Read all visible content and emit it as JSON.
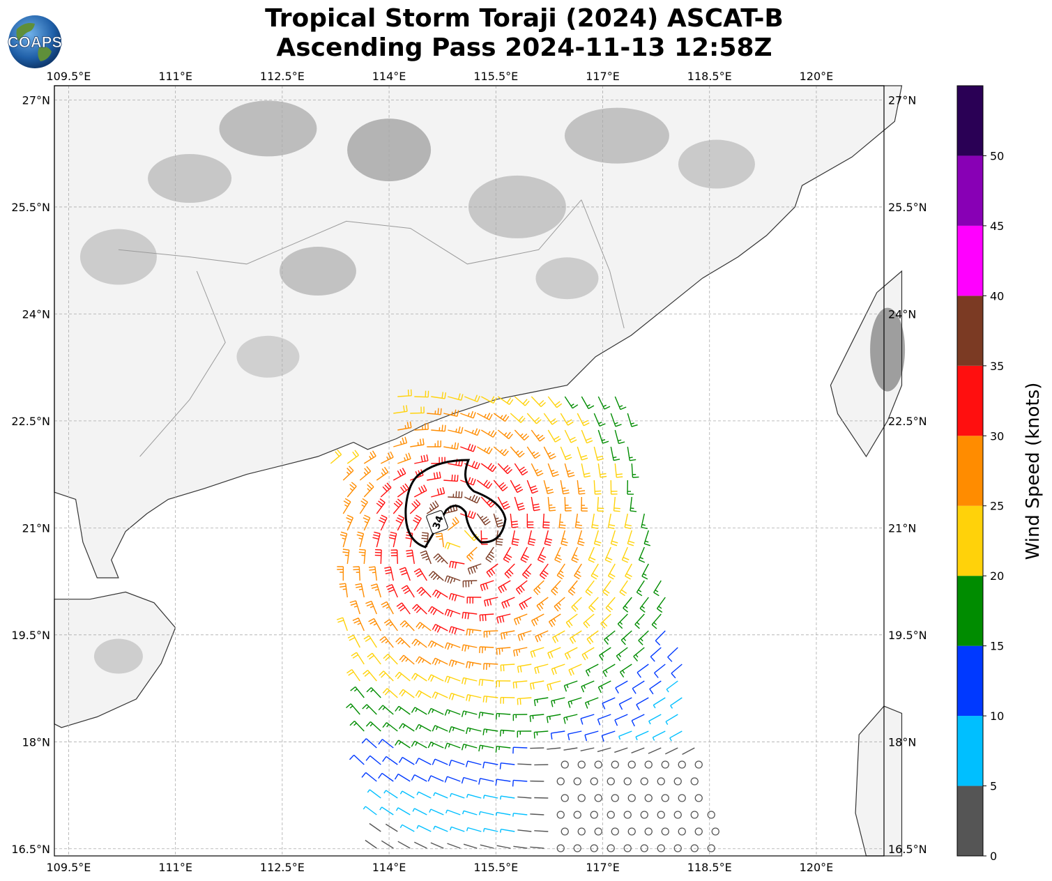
{
  "header": {
    "title_line1": "Tropical Storm Toraji (2024) ASCAT-B",
    "title_line2": "Ascending Pass 2024-11-13 12:58Z",
    "logo_text": "COAPS"
  },
  "map": {
    "lon_ticks": [
      "109.5°E",
      "111°E",
      "112.5°E",
      "114°E",
      "115.5°E",
      "117°E",
      "118.5°E",
      "120°E"
    ],
    "lat_ticks": [
      "27°N",
      "25.5°N",
      "24°N",
      "22.5°N",
      "21°N",
      "19.5°N",
      "18°N",
      "16.5°N"
    ],
    "extent": {
      "lon_min": 109.3,
      "lon_max": 120.95,
      "lat_min": 16.4,
      "lat_max": 27.2
    },
    "contour_label": "34",
    "storm_center": {
      "lon": 115.0,
      "lat": 20.85
    },
    "land_color": "#f3f3f3",
    "coast_color": "#333333"
  },
  "colorbar": {
    "label": "Wind Speed (knots)",
    "ticks": [
      "0",
      "5",
      "10",
      "15",
      "20",
      "25",
      "30",
      "35",
      "40",
      "45",
      "50"
    ],
    "bins": [
      {
        "min": 0,
        "max": 5,
        "color": "#555555"
      },
      {
        "min": 5,
        "max": 10,
        "color": "#00bfff"
      },
      {
        "min": 10,
        "max": 15,
        "color": "#0039ff"
      },
      {
        "min": 15,
        "max": 20,
        "color": "#008c00"
      },
      {
        "min": 20,
        "max": 25,
        "color": "#ffd20a"
      },
      {
        "min": 25,
        "max": 30,
        "color": "#ff8c00"
      },
      {
        "min": 30,
        "max": 35,
        "color": "#ff0f0f"
      },
      {
        "min": 35,
        "max": 40,
        "color": "#7b3a23"
      },
      {
        "min": 40,
        "max": 45,
        "color": "#ff00ff"
      },
      {
        "min": 45,
        "max": 50,
        "color": "#8800b5"
      },
      {
        "min": 50,
        "max": 55,
        "color": "#2a0055"
      }
    ]
  }
}
